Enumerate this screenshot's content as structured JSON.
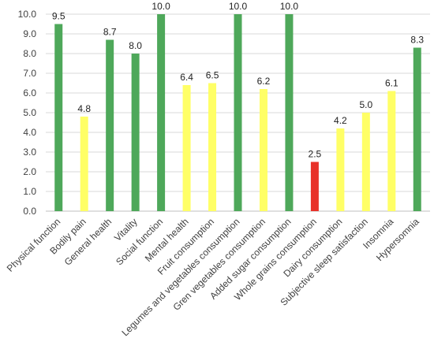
{
  "chart_data": {
    "type": "bar",
    "title": "",
    "xlabel": "",
    "ylabel": "",
    "ylim": [
      0,
      10
    ],
    "ytick_step": 1,
    "ytick_format_decimals": 1,
    "grid": true,
    "legend": "none",
    "categories": [
      "Physical function",
      "Bodily pain",
      "General health",
      "Vitality",
      "Social function",
      "Mental health",
      "Fruit consumption",
      "Legumes and vegetables consumption",
      "Gren vegetables consumption",
      "Added sugar consumption",
      "Whole grains consumption",
      "Dairy consumption",
      "Subjective sleep satisfaction",
      "Insomnia",
      "Hypersomnia"
    ],
    "values": [
      9.5,
      4.8,
      8.7,
      8.0,
      10.0,
      6.4,
      6.5,
      10.0,
      6.2,
      10.0,
      2.5,
      4.2,
      5.0,
      6.1,
      8.3
    ],
    "data_labels": [
      "9.5",
      "4.8",
      "8.7",
      "8.0",
      "10.0",
      "6.4",
      "6.5",
      "10.0",
      "6.2",
      "10.0",
      "2.5",
      "4.2",
      "5.0",
      "6.1",
      "8.3"
    ],
    "colors": [
      "green",
      "yellow",
      "green",
      "green",
      "green",
      "yellow",
      "yellow",
      "green",
      "yellow",
      "green",
      "red",
      "yellow",
      "yellow",
      "yellow",
      "green"
    ],
    "palette": {
      "green": "#4ea85a",
      "yellow": "#ffff66",
      "red": "#e8322a"
    }
  }
}
